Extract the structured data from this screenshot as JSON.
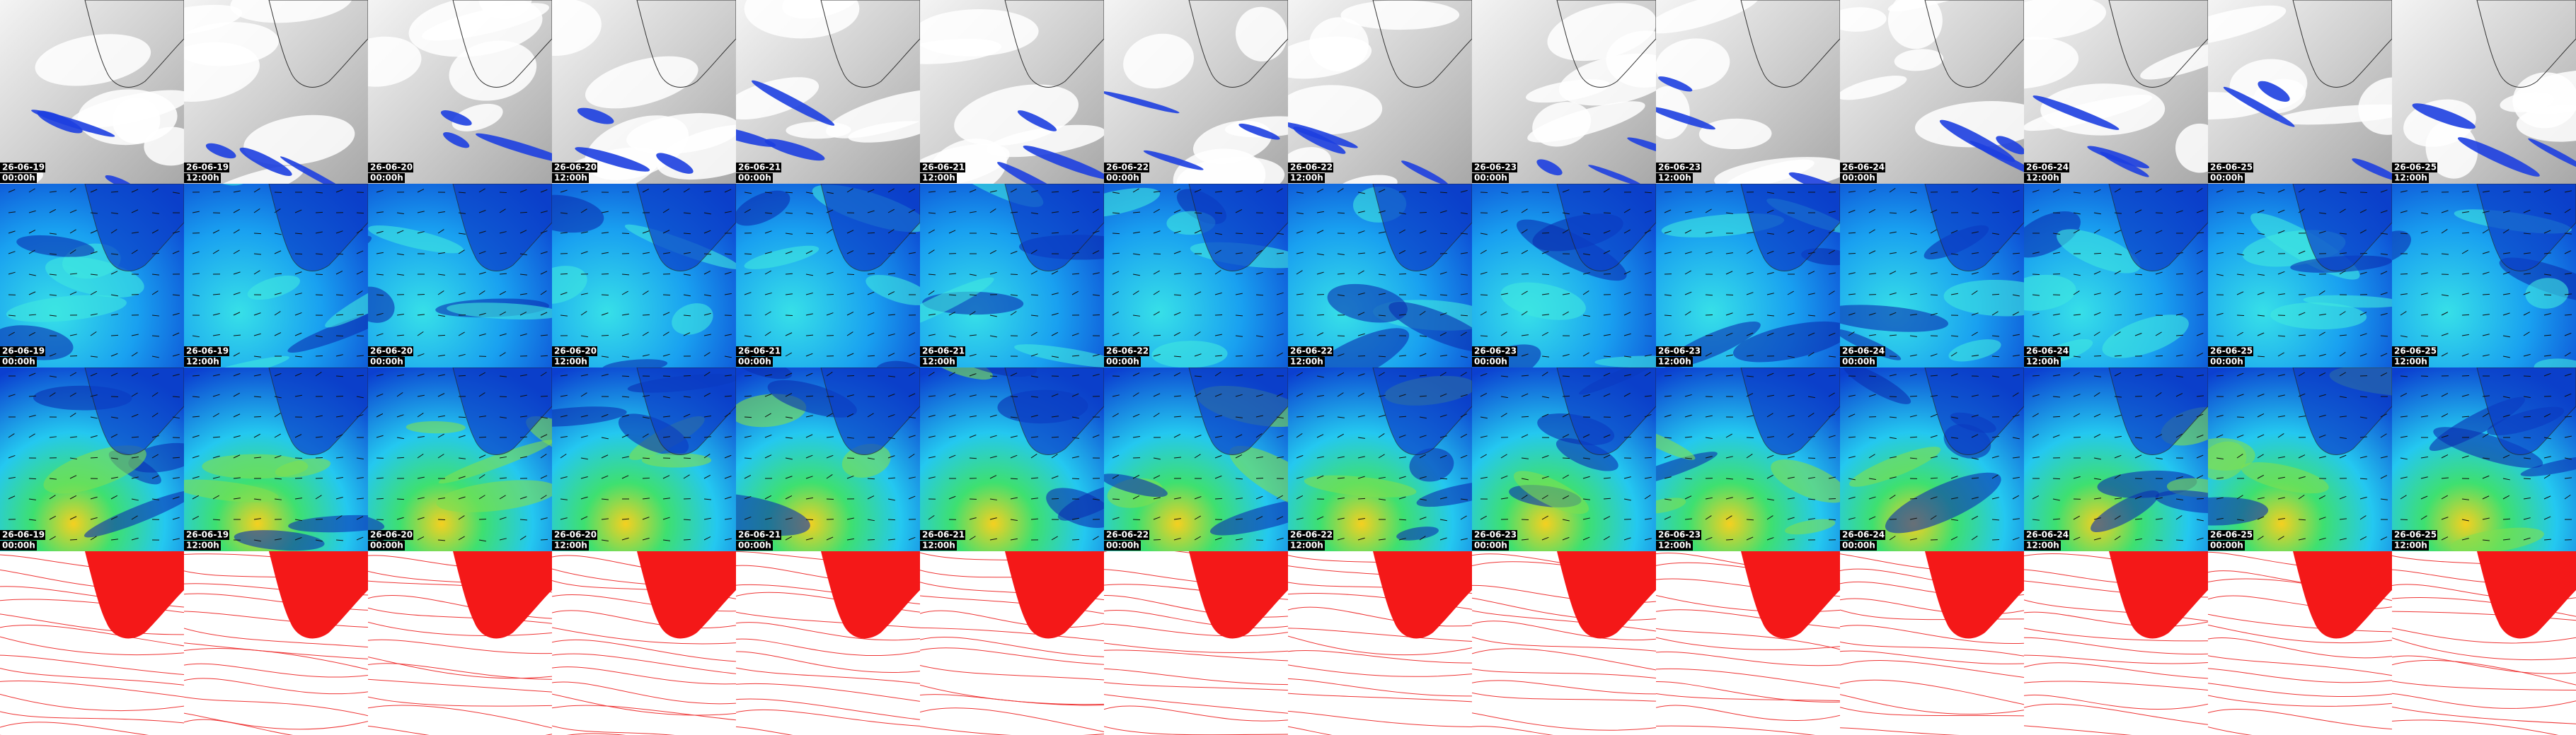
{
  "frames": [
    {
      "date": "26-06-19",
      "time": "00:00h"
    },
    {
      "date": "26-06-19",
      "time": "12:00h"
    },
    {
      "date": "26-06-20",
      "time": "00:00h"
    },
    {
      "date": "26-06-20",
      "time": "12:00h"
    },
    {
      "date": "26-06-21",
      "time": "00:00h"
    },
    {
      "date": "26-06-21",
      "time": "12:00h"
    },
    {
      "date": "26-06-22",
      "time": "00:00h"
    },
    {
      "date": "26-06-22",
      "time": "12:00h"
    },
    {
      "date": "26-06-23",
      "time": "00:00h"
    },
    {
      "date": "26-06-23",
      "time": "12:00h"
    },
    {
      "date": "26-06-24",
      "time": "00:00h"
    },
    {
      "date": "26-06-24",
      "time": "12:00h"
    },
    {
      "date": "26-06-25",
      "time": "00:00h"
    },
    {
      "date": "26-06-25",
      "time": "12:00h"
    }
  ]
}
